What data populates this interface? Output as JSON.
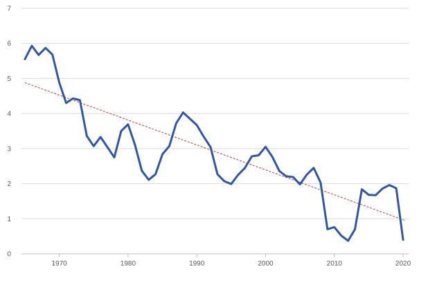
{
  "chart_data": {
    "type": "line",
    "title": "",
    "xlabel": "",
    "ylabel": "",
    "xlim": [
      1964.5,
      2020.8
    ],
    "ylim": [
      0,
      7
    ],
    "x_ticks": [
      1970,
      1980,
      1990,
      2000,
      2010,
      2020
    ],
    "y_ticks": [
      0,
      1,
      2,
      3,
      4,
      5,
      6,
      7
    ],
    "grid": true,
    "legend": "none",
    "colors": {
      "series": "#2f55a4",
      "trend": "#c0392b",
      "grid": "#d9d9d9",
      "tick_text": "#595959"
    },
    "x": [
      1965,
      1966,
      1967,
      1968,
      1969,
      1970,
      1971,
      1972,
      1973,
      1974,
      1975,
      1976,
      1977,
      1978,
      1979,
      1980,
      1981,
      1982,
      1983,
      1984,
      1985,
      1986,
      1987,
      1988,
      1989,
      1990,
      1991,
      1992,
      1993,
      1994,
      1995,
      1996,
      1997,
      1998,
      1999,
      2000,
      2001,
      2002,
      2003,
      2004,
      2005,
      2006,
      2007,
      2008,
      2009,
      2010,
      2011,
      2012,
      2013,
      2014,
      2015,
      2016,
      2017,
      2018,
      2019,
      2020
    ],
    "series": [
      {
        "values": [
          5.55,
          5.93,
          5.67,
          5.87,
          5.68,
          4.88,
          4.3,
          4.43,
          4.38,
          3.36,
          3.07,
          3.33,
          3.04,
          2.75,
          3.5,
          3.69,
          3.11,
          2.37,
          2.11,
          2.27,
          2.84,
          3.07,
          3.72,
          4.03,
          3.85,
          3.67,
          3.34,
          3.04,
          2.27,
          2.07,
          1.99,
          2.25,
          2.45,
          2.78,
          2.81,
          3.05,
          2.76,
          2.36,
          2.21,
          2.19,
          1.98,
          2.26,
          2.45,
          2.03,
          0.7,
          0.76,
          0.52,
          0.37,
          0.7,
          1.84,
          1.68,
          1.67,
          1.86,
          1.96,
          1.87,
          0.4
        ]
      }
    ],
    "trend": {
      "style": "dashed",
      "x": [
        1965,
        2020.3
      ],
      "values": [
        4.88,
        0.95
      ]
    }
  }
}
